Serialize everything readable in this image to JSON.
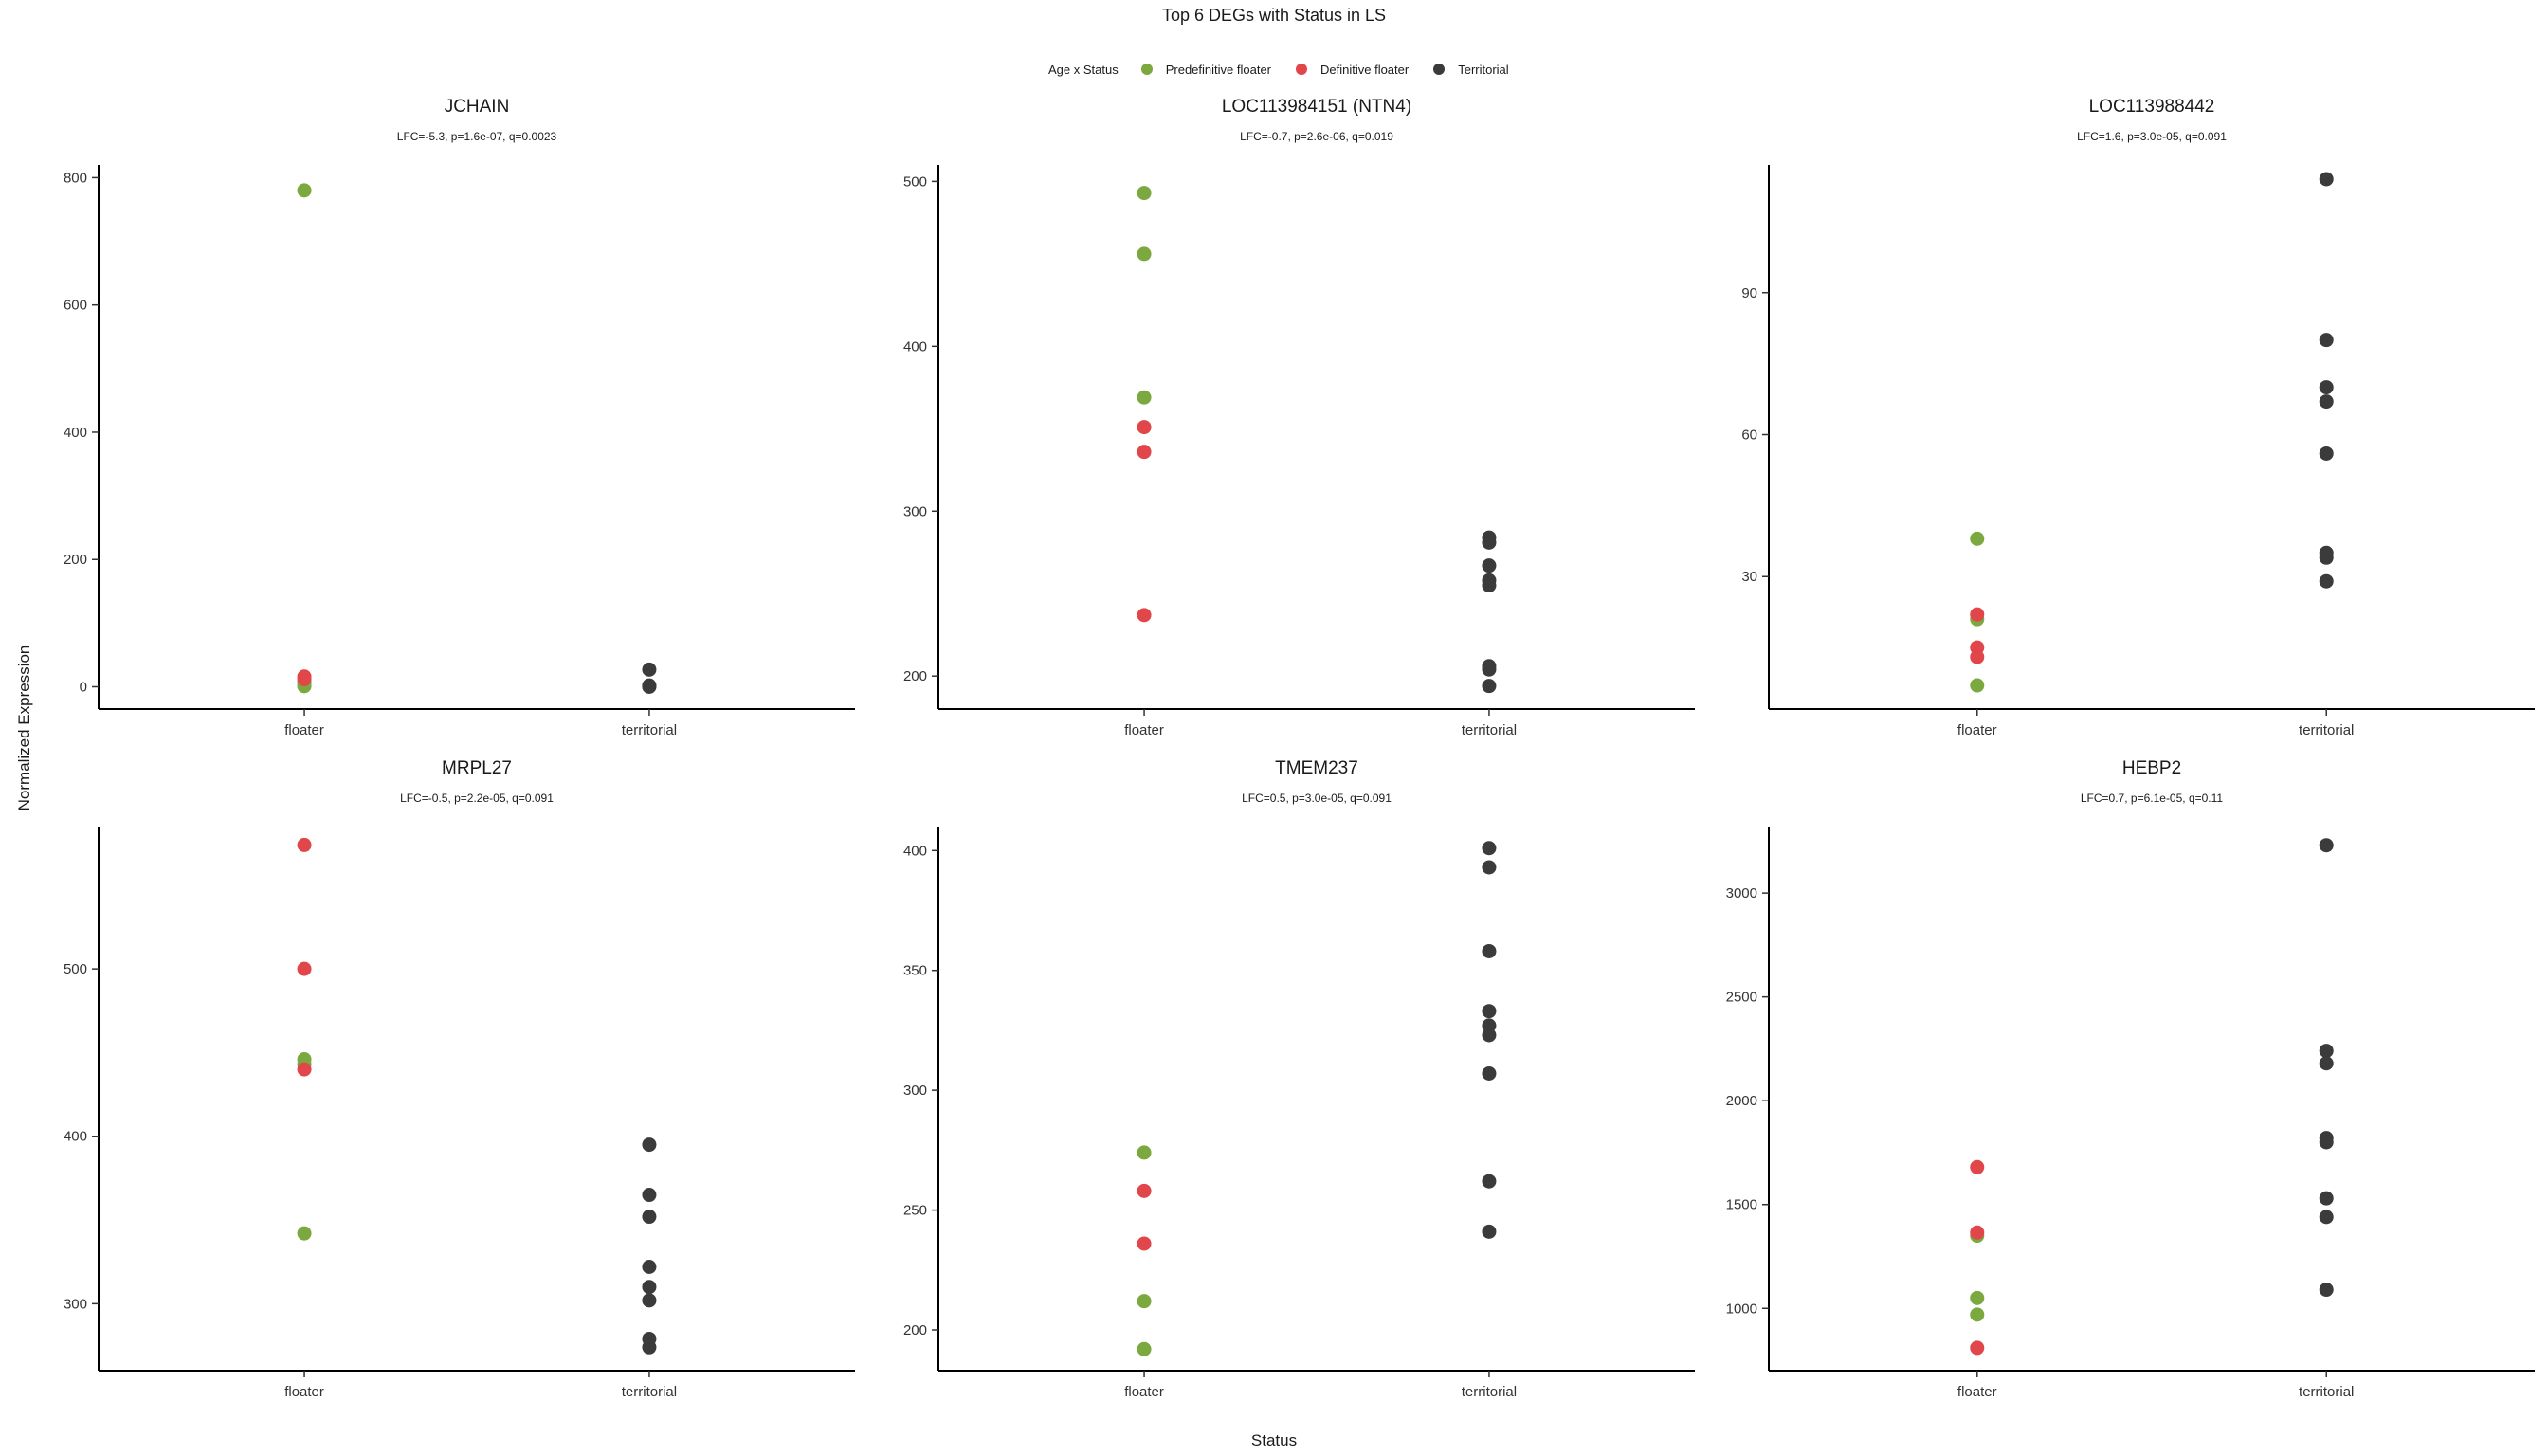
{
  "title": "Top 6 DEGs with Status in LS",
  "legend": {
    "title": "Age x Status",
    "items": [
      {
        "label": "Predefinitive floater",
        "color": "#7CA840"
      },
      {
        "label": "Definitive floater",
        "color": "#E0464A"
      },
      {
        "label": "Territorial",
        "color": "#3B3B3B"
      }
    ]
  },
  "ylabel": "Normalized Expression",
  "xlabel": "Status",
  "chart_data": [
    {
      "type": "scatter",
      "title": "JCHAIN",
      "subtitle": "LFC=-5.3, p=1.6e-07, q=0.0023",
      "categories": [
        "floater",
        "territorial"
      ],
      "yticks": [
        0,
        200,
        400,
        600,
        800
      ],
      "ylim": [
        -35,
        820
      ],
      "series": [
        {
          "name": "Predefinitive floater",
          "color": "#7CA840",
          "points": [
            [
              "floater",
              780
            ],
            [
              "floater",
              8
            ],
            [
              "floater",
              3
            ],
            [
              "floater",
              1
            ]
          ]
        },
        {
          "name": "Definitive floater",
          "color": "#E0464A",
          "points": [
            [
              "floater",
              16
            ],
            [
              "floater",
              12
            ]
          ]
        },
        {
          "name": "Territorial",
          "color": "#3B3B3B",
          "points": [
            [
              "territorial",
              27
            ],
            [
              "territorial",
              2
            ],
            [
              "territorial",
              1
            ],
            [
              "territorial",
              0
            ]
          ]
        }
      ]
    },
    {
      "type": "scatter",
      "title": "LOC113984151 (NTN4)",
      "subtitle": "LFC=-0.7, p=2.6e-06, q=0.019",
      "categories": [
        "floater",
        "territorial"
      ],
      "yticks": [
        200,
        300,
        400,
        500
      ],
      "ylim": [
        180,
        510
      ],
      "series": [
        {
          "name": "Predefinitive floater",
          "color": "#7CA840",
          "points": [
            [
              "floater",
              493
            ],
            [
              "floater",
              456
            ],
            [
              "floater",
              369
            ]
          ]
        },
        {
          "name": "Definitive floater",
          "color": "#E0464A",
          "points": [
            [
              "floater",
              351
            ],
            [
              "floater",
              336
            ],
            [
              "floater",
              237
            ]
          ]
        },
        {
          "name": "Territorial",
          "color": "#3B3B3B",
          "points": [
            [
              "territorial",
              284
            ],
            [
              "territorial",
              281
            ],
            [
              "territorial",
              267
            ],
            [
              "territorial",
              258
            ],
            [
              "territorial",
              255
            ],
            [
              "territorial",
              206
            ],
            [
              "territorial",
              204
            ],
            [
              "territorial",
              194
            ]
          ]
        }
      ]
    },
    {
      "type": "scatter",
      "title": "LOC113988442",
      "subtitle": "LFC=1.6, p=3.0e-05, q=0.091",
      "categories": [
        "floater",
        "territorial"
      ],
      "yticks": [
        30,
        60,
        90
      ],
      "ylim": [
        2,
        117
      ],
      "series": [
        {
          "name": "Predefinitive floater",
          "color": "#7CA840",
          "points": [
            [
              "floater",
              38
            ],
            [
              "floater",
              21
            ],
            [
              "floater",
              7
            ]
          ]
        },
        {
          "name": "Definitive floater",
          "color": "#E0464A",
          "points": [
            [
              "floater",
              22
            ],
            [
              "floater",
              15
            ],
            [
              "floater",
              13
            ]
          ]
        },
        {
          "name": "Territorial",
          "color": "#3B3B3B",
          "points": [
            [
              "territorial",
              114
            ],
            [
              "territorial",
              80
            ],
            [
              "territorial",
              70
            ],
            [
              "territorial",
              67
            ],
            [
              "territorial",
              56
            ],
            [
              "territorial",
              35
            ],
            [
              "territorial",
              34
            ],
            [
              "territorial",
              29
            ]
          ]
        }
      ]
    },
    {
      "type": "scatter",
      "title": "MRPL27",
      "subtitle": "LFC=-0.5, p=2.2e-05, q=0.091",
      "categories": [
        "floater",
        "territorial"
      ],
      "yticks": [
        300,
        400,
        500
      ],
      "ylim": [
        260,
        585
      ],
      "series": [
        {
          "name": "Predefinitive floater",
          "color": "#7CA840",
          "points": [
            [
              "floater",
              446
            ],
            [
              "floater",
              443
            ],
            [
              "floater",
              342
            ]
          ]
        },
        {
          "name": "Definitive floater",
          "color": "#E0464A",
          "points": [
            [
              "floater",
              574
            ],
            [
              "floater",
              500
            ],
            [
              "floater",
              440
            ]
          ]
        },
        {
          "name": "Territorial",
          "color": "#3B3B3B",
          "points": [
            [
              "territorial",
              395
            ],
            [
              "territorial",
              365
            ],
            [
              "territorial",
              352
            ],
            [
              "territorial",
              322
            ],
            [
              "territorial",
              310
            ],
            [
              "territorial",
              302
            ],
            [
              "territorial",
              279
            ],
            [
              "territorial",
              274
            ]
          ]
        }
      ]
    },
    {
      "type": "scatter",
      "title": "TMEM237",
      "subtitle": "LFC=0.5, p=3.0e-05, q=0.091",
      "categories": [
        "floater",
        "territorial"
      ],
      "yticks": [
        200,
        250,
        300,
        350,
        400
      ],
      "ylim": [
        183,
        410
      ],
      "series": [
        {
          "name": "Predefinitive floater",
          "color": "#7CA840",
          "points": [
            [
              "floater",
              274
            ],
            [
              "floater",
              212
            ],
            [
              "floater",
              192
            ]
          ]
        },
        {
          "name": "Definitive floater",
          "color": "#E0464A",
          "points": [
            [
              "floater",
              258
            ],
            [
              "floater",
              236
            ]
          ]
        },
        {
          "name": "Territorial",
          "color": "#3B3B3B",
          "points": [
            [
              "territorial",
              401
            ],
            [
              "territorial",
              393
            ],
            [
              "territorial",
              358
            ],
            [
              "territorial",
              333
            ],
            [
              "territorial",
              327
            ],
            [
              "territorial",
              323
            ],
            [
              "territorial",
              307
            ],
            [
              "territorial",
              262
            ],
            [
              "territorial",
              241
            ]
          ]
        }
      ]
    },
    {
      "type": "scatter",
      "title": "HEBP2",
      "subtitle": "LFC=0.7, p=6.1e-05, q=0.11",
      "categories": [
        "floater",
        "territorial"
      ],
      "yticks": [
        1000,
        1500,
        2000,
        2500,
        3000
      ],
      "ylim": [
        700,
        3320
      ],
      "series": [
        {
          "name": "Predefinitive floater",
          "color": "#7CA840",
          "points": [
            [
              "floater",
              1350
            ],
            [
              "floater",
              1050
            ],
            [
              "floater",
              970
            ]
          ]
        },
        {
          "name": "Definitive floater",
          "color": "#E0464A",
          "points": [
            [
              "floater",
              1680
            ],
            [
              "floater",
              1365
            ],
            [
              "floater",
              810
            ]
          ]
        },
        {
          "name": "Territorial",
          "color": "#3B3B3B",
          "points": [
            [
              "territorial",
              3230
            ],
            [
              "territorial",
              2240
            ],
            [
              "territorial",
              2180
            ],
            [
              "territorial",
              1820
            ],
            [
              "territorial",
              1800
            ],
            [
              "territorial",
              1530
            ],
            [
              "territorial",
              1440
            ],
            [
              "territorial",
              1090
            ]
          ]
        }
      ]
    }
  ]
}
